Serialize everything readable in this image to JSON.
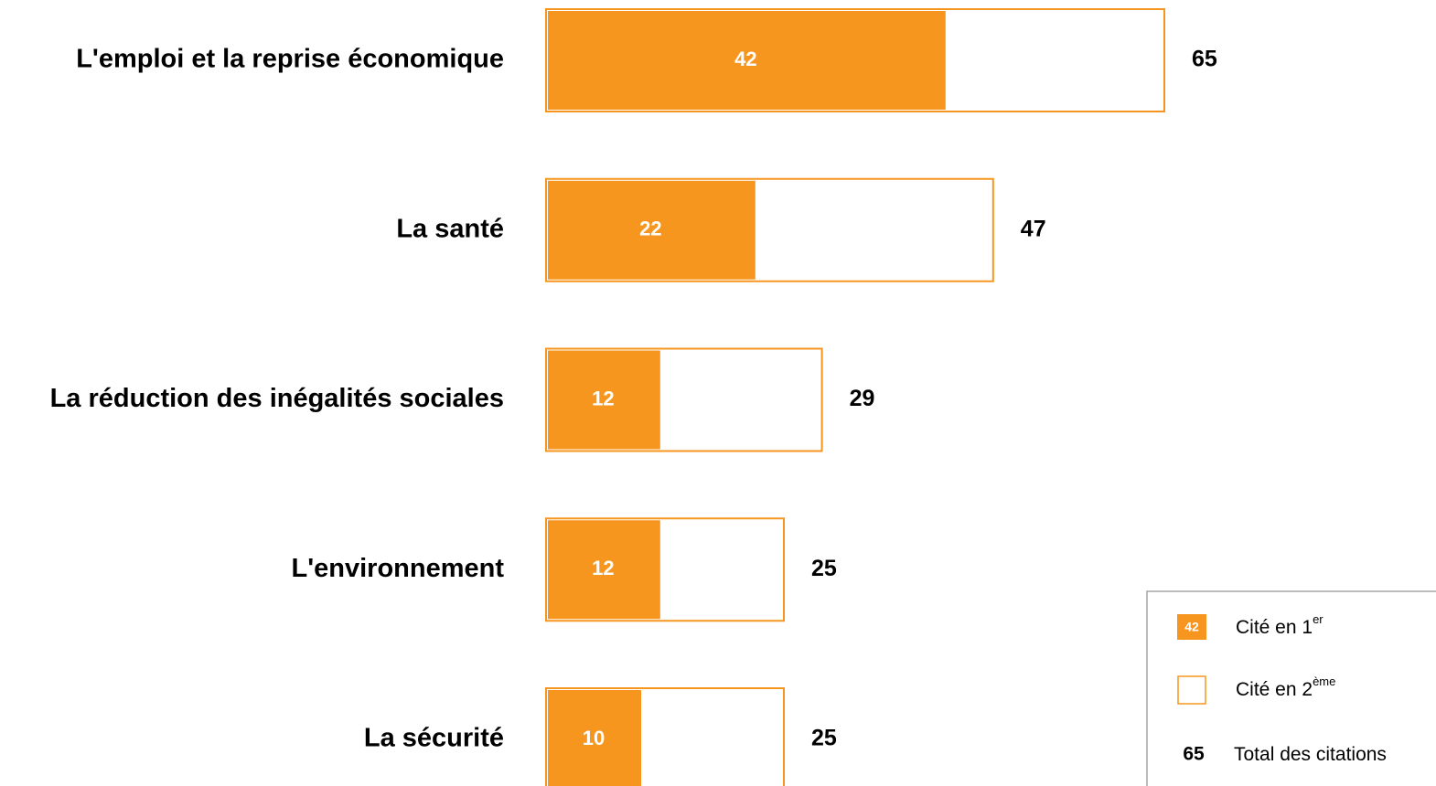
{
  "chart_data": {
    "type": "bar",
    "categories": [
      "L'emploi et la reprise économique",
      "La santé",
      "La réduction des inégalités sociales",
      "L'environnement",
      "La sécurité"
    ],
    "series": [
      {
        "color": "#f7961e",
        "values": [
          42,
          22,
          12,
          12,
          10
        ]
      },
      {
        "color": "#f7961e",
        "values": [
          65,
          47,
          29,
          25,
          25
        ]
      }
    ],
    "legend": [
      {
        "label": "Cité en 1",
        "sup": "er"
      },
      {
        "label": "Cité en 2",
        "sup": "ème"
      },
      {
        "label": "Total des citations"
      }
    ]
  }
}
